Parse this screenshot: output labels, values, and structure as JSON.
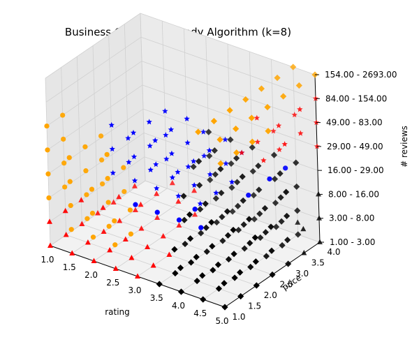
{
  "chart_data": {
    "type": "scatter",
    "projection": "3d",
    "title": "Business Gonzalez Greedy Algorithm (k=8)",
    "xlabel": "rating",
    "ylabel": "price",
    "zlabel": "# reviews",
    "x_ticks": [
      "1.0",
      "1.5",
      "2.0",
      "2.5",
      "3.0",
      "3.5",
      "4.0",
      "4.5",
      "5.0"
    ],
    "y_ticks": [
      "1.0",
      "1.5",
      "2.0",
      "2.5",
      "3.0",
      "3.5",
      "4.0"
    ],
    "z_ticks": [
      "1.00 - 3.00",
      "3.00 - 8.00",
      "8.00 - 16.00",
      "16.00 - 29.00",
      "29.00 - 49.00",
      "49.00 - 83.00",
      "84.00 - 154.00",
      "154.00 - 2693.00"
    ],
    "xlim": [
      1,
      5
    ],
    "ylim": [
      1,
      4
    ],
    "zlim": [
      0,
      7
    ],
    "grid": true,
    "legend": "none",
    "clusters": [
      {
        "id": "orange",
        "marker": "circle",
        "color": "#FFA500",
        "points": [
          [
            1.0,
            1.0,
            2
          ],
          [
            1.0,
            1.0,
            3
          ],
          [
            1.0,
            1.0,
            4
          ],
          [
            1.0,
            1.0,
            5
          ],
          [
            1.0,
            1.5,
            2
          ],
          [
            1.0,
            1.5,
            3
          ],
          [
            1.0,
            1.5,
            4
          ],
          [
            1.0,
            1.5,
            5
          ],
          [
            1.5,
            1.0,
            1
          ],
          [
            1.5,
            1.0,
            2
          ],
          [
            1.5,
            1.0,
            3
          ],
          [
            1.5,
            1.0,
            4
          ],
          [
            1.5,
            1.5,
            1
          ],
          [
            1.5,
            1.5,
            2
          ],
          [
            1.5,
            1.5,
            3
          ],
          [
            1.5,
            1.5,
            4
          ],
          [
            1.5,
            2.0,
            2
          ],
          [
            1.5,
            2.0,
            3
          ],
          [
            1.5,
            2.0,
            4
          ],
          [
            2.0,
            1.0,
            1
          ],
          [
            2.0,
            1.0,
            2
          ],
          [
            2.0,
            1.0,
            3
          ],
          [
            2.0,
            1.5,
            1
          ],
          [
            2.0,
            1.5,
            2
          ],
          [
            2.0,
            1.5,
            3
          ],
          [
            2.0,
            1.5,
            4
          ],
          [
            2.0,
            2.0,
            2
          ],
          [
            2.0,
            2.0,
            3
          ],
          [
            2.5,
            1.0,
            1
          ],
          [
            2.5,
            1.0,
            2
          ],
          [
            2.5,
            1.5,
            1
          ],
          [
            2.5,
            1.5,
            2
          ]
        ]
      },
      {
        "id": "orange-diamond",
        "marker": "diamond",
        "color": "#FFA500",
        "points": [
          [
            4.5,
            1.0,
            7
          ],
          [
            4.5,
            1.5,
            7
          ],
          [
            4.5,
            2.0,
            7
          ],
          [
            4.5,
            2.5,
            7
          ],
          [
            4.5,
            3.0,
            7
          ],
          [
            4.5,
            3.5,
            7
          ],
          [
            4.5,
            4.0,
            7
          ],
          [
            5.0,
            1.0,
            7
          ],
          [
            5.0,
            1.5,
            7
          ],
          [
            5.0,
            2.0,
            7
          ],
          [
            5.0,
            2.5,
            7
          ],
          [
            5.0,
            3.0,
            7
          ],
          [
            5.0,
            3.5,
            7
          ],
          [
            5.0,
            4.0,
            7
          ],
          [
            5.0,
            1.0,
            6
          ],
          [
            5.0,
            1.5,
            6
          ],
          [
            5.0,
            2.0,
            6
          ],
          [
            5.0,
            2.5,
            6
          ]
        ]
      },
      {
        "id": "blue",
        "marker": "star",
        "color": "#0000FF",
        "points": [
          [
            2.5,
            1.0,
            4
          ],
          [
            2.5,
            1.0,
            5
          ],
          [
            2.5,
            1.0,
            6
          ],
          [
            2.5,
            1.5,
            4
          ],
          [
            2.5,
            1.5,
            5
          ],
          [
            3.0,
            1.0,
            4
          ],
          [
            3.0,
            1.0,
            5
          ],
          [
            3.0,
            1.0,
            6
          ],
          [
            3.0,
            1.5,
            4
          ],
          [
            3.0,
            1.5,
            5
          ],
          [
            3.0,
            1.5,
            6
          ],
          [
            3.0,
            2.0,
            4
          ],
          [
            3.0,
            2.0,
            5
          ],
          [
            3.0,
            2.0,
            6
          ],
          [
            3.5,
            1.0,
            4
          ],
          [
            3.5,
            1.0,
            5
          ],
          [
            3.5,
            1.0,
            6
          ],
          [
            3.5,
            1.5,
            4
          ],
          [
            3.5,
            1.5,
            5
          ],
          [
            3.5,
            1.5,
            6
          ],
          [
            3.5,
            2.0,
            4
          ],
          [
            3.5,
            2.0,
            5
          ],
          [
            3.5,
            2.0,
            6
          ],
          [
            3.5,
            2.5,
            4
          ],
          [
            3.5,
            2.5,
            5
          ],
          [
            4.0,
            1.0,
            4
          ],
          [
            4.0,
            1.0,
            5
          ],
          [
            4.0,
            1.5,
            4
          ],
          [
            4.0,
            1.5,
            5
          ],
          [
            4.0,
            2.0,
            4
          ],
          [
            4.0,
            2.0,
            5
          ],
          [
            4.0,
            2.5,
            4
          ],
          [
            4.0,
            2.5,
            5
          ],
          [
            4.0,
            3.0,
            4
          ],
          [
            4.5,
            1.0,
            4
          ],
          [
            4.5,
            1.5,
            4
          ],
          [
            4.5,
            2.0,
            4
          ]
        ]
      },
      {
        "id": "blue-circle",
        "marker": "circle",
        "color": "#0000FF",
        "points": [
          [
            3.0,
            1.0,
            3
          ],
          [
            3.5,
            1.0,
            3
          ],
          [
            4.0,
            1.0,
            3
          ],
          [
            4.0,
            1.5,
            3
          ],
          [
            4.5,
            1.0,
            3
          ],
          [
            4.5,
            2.5,
            3
          ],
          [
            5.0,
            2.5,
            4
          ],
          [
            5.0,
            3.0,
            4
          ]
        ]
      },
      {
        "id": "red-star",
        "marker": "star",
        "color": "#FF0000",
        "points": [
          [
            4.0,
            3.0,
            4
          ],
          [
            4.0,
            3.5,
            4
          ],
          [
            4.0,
            3.5,
            5
          ],
          [
            4.0,
            4.0,
            4
          ],
          [
            4.5,
            3.0,
            4
          ],
          [
            4.5,
            3.5,
            4
          ],
          [
            4.5,
            3.5,
            5
          ],
          [
            4.5,
            4.0,
            5
          ],
          [
            5.0,
            3.0,
            5
          ],
          [
            5.0,
            3.5,
            5
          ],
          [
            5.0,
            4.0,
            5
          ],
          [
            5.0,
            3.5,
            6
          ],
          [
            5.0,
            4.0,
            6
          ],
          [
            5.0,
            4.0,
            4
          ]
        ]
      },
      {
        "id": "red",
        "marker": "triangle",
        "color": "#FF0000",
        "points": [
          [
            1.0,
            1.0,
            0
          ],
          [
            1.0,
            1.0,
            1
          ],
          [
            1.0,
            1.5,
            0
          ],
          [
            1.0,
            1.5,
            1
          ],
          [
            1.0,
            2.0,
            0
          ],
          [
            1.0,
            2.0,
            1
          ],
          [
            1.0,
            2.5,
            0
          ],
          [
            1.0,
            3.0,
            0
          ],
          [
            1.5,
            1.0,
            0
          ],
          [
            1.5,
            1.5,
            0
          ],
          [
            1.5,
            2.0,
            0
          ],
          [
            1.5,
            2.5,
            0
          ],
          [
            1.5,
            3.0,
            0
          ],
          [
            1.5,
            2.0,
            1
          ],
          [
            1.5,
            2.5,
            1
          ],
          [
            1.5,
            3.0,
            1
          ],
          [
            2.0,
            1.0,
            0
          ],
          [
            2.0,
            1.5,
            0
          ],
          [
            2.0,
            2.0,
            0
          ],
          [
            2.0,
            2.5,
            0
          ],
          [
            2.0,
            3.0,
            0
          ],
          [
            2.0,
            2.5,
            1
          ],
          [
            2.0,
            3.0,
            1
          ],
          [
            2.0,
            3.5,
            1
          ],
          [
            2.5,
            1.0,
            0
          ],
          [
            2.5,
            1.5,
            0
          ],
          [
            2.5,
            2.0,
            0
          ],
          [
            2.5,
            2.5,
            0
          ],
          [
            2.5,
            3.0,
            0
          ],
          [
            2.5,
            3.5,
            0
          ],
          [
            2.5,
            3.0,
            1
          ],
          [
            2.5,
            3.5,
            1
          ],
          [
            3.0,
            1.0,
            0
          ],
          [
            3.0,
            1.5,
            0
          ],
          [
            3.0,
            2.0,
            0
          ]
        ]
      },
      {
        "id": "black",
        "marker": "diamond",
        "color": "#000000",
        "points": [
          [
            2.5,
            4.0,
            1
          ],
          [
            2.5,
            4.0,
            2
          ],
          [
            2.5,
            4.0,
            3
          ],
          [
            2.5,
            3.5,
            2
          ],
          [
            3.0,
            2.5,
            0
          ],
          [
            3.0,
            3.0,
            0
          ],
          [
            3.0,
            3.5,
            0
          ],
          [
            3.0,
            4.0,
            0
          ],
          [
            3.0,
            2.5,
            1
          ],
          [
            3.0,
            3.0,
            1
          ],
          [
            3.0,
            3.5,
            1
          ],
          [
            3.0,
            4.0,
            1
          ],
          [
            3.0,
            2.5,
            2
          ],
          [
            3.0,
            3.0,
            2
          ],
          [
            3.0,
            3.5,
            2
          ],
          [
            3.0,
            4.0,
            2
          ],
          [
            3.0,
            3.0,
            3
          ],
          [
            3.0,
            3.5,
            3
          ],
          [
            3.0,
            4.0,
            3
          ],
          [
            3.5,
            1.0,
            0
          ],
          [
            3.5,
            1.5,
            0
          ],
          [
            3.5,
            2.0,
            0
          ],
          [
            3.5,
            2.5,
            0
          ],
          [
            3.5,
            3.0,
            0
          ],
          [
            3.5,
            3.5,
            0
          ],
          [
            3.5,
            4.0,
            0
          ],
          [
            3.5,
            1.5,
            1
          ],
          [
            3.5,
            2.0,
            1
          ],
          [
            3.5,
            2.5,
            1
          ],
          [
            3.5,
            3.0,
            1
          ],
          [
            3.5,
            3.5,
            1
          ],
          [
            3.5,
            4.0,
            1
          ],
          [
            3.5,
            2.0,
            2
          ],
          [
            3.5,
            2.5,
            2
          ],
          [
            3.5,
            3.0,
            2
          ],
          [
            3.5,
            3.5,
            2
          ],
          [
            3.5,
            4.0,
            2
          ],
          [
            3.5,
            3.0,
            3
          ],
          [
            3.5,
            3.5,
            3
          ],
          [
            3.5,
            4.0,
            3
          ],
          [
            4.0,
            1.0,
            0
          ],
          [
            4.0,
            1.5,
            0
          ],
          [
            4.0,
            2.0,
            0
          ],
          [
            4.0,
            2.5,
            0
          ],
          [
            4.0,
            3.0,
            0
          ],
          [
            4.0,
            3.5,
            0
          ],
          [
            4.0,
            4.0,
            0
          ],
          [
            4.0,
            1.0,
            1
          ],
          [
            4.0,
            1.5,
            1
          ],
          [
            4.0,
            2.0,
            1
          ],
          [
            4.0,
            2.5,
            1
          ],
          [
            4.0,
            3.0,
            1
          ],
          [
            4.0,
            3.5,
            1
          ],
          [
            4.0,
            4.0,
            1
          ],
          [
            4.0,
            2.0,
            2
          ],
          [
            4.0,
            2.5,
            2
          ],
          [
            4.0,
            3.0,
            2
          ],
          [
            4.0,
            3.5,
            2
          ],
          [
            4.0,
            4.0,
            2
          ],
          [
            4.0,
            3.0,
            3
          ],
          [
            4.0,
            3.5,
            3
          ],
          [
            4.0,
            4.0,
            3
          ],
          [
            4.5,
            1.0,
            0
          ],
          [
            4.5,
            1.5,
            0
          ],
          [
            4.5,
            2.0,
            0
          ],
          [
            4.5,
            2.5,
            0
          ],
          [
            4.5,
            3.0,
            0
          ],
          [
            4.5,
            3.5,
            0
          ],
          [
            4.5,
            4.0,
            0
          ],
          [
            4.5,
            1.0,
            1
          ],
          [
            4.5,
            1.5,
            1
          ],
          [
            4.5,
            2.0,
            1
          ],
          [
            4.5,
            2.5,
            1
          ],
          [
            4.5,
            3.0,
            1
          ],
          [
            4.5,
            3.5,
            1
          ],
          [
            4.5,
            4.0,
            1
          ],
          [
            4.5,
            2.0,
            2
          ],
          [
            4.5,
            2.5,
            2
          ],
          [
            4.5,
            3.0,
            2
          ],
          [
            4.5,
            3.5,
            2
          ],
          [
            4.5,
            4.0,
            2
          ],
          [
            4.5,
            3.5,
            3
          ],
          [
            4.5,
            4.0,
            3
          ],
          [
            5.0,
            1.0,
            0
          ],
          [
            5.0,
            1.5,
            0
          ],
          [
            5.0,
            2.0,
            0
          ],
          [
            5.0,
            2.5,
            0
          ],
          [
            5.0,
            3.0,
            0
          ],
          [
            5.0,
            1.0,
            1
          ],
          [
            5.0,
            1.5,
            1
          ],
          [
            5.0,
            2.0,
            1
          ],
          [
            5.0,
            2.5,
            1
          ],
          [
            5.0,
            3.0,
            1
          ],
          [
            5.0,
            2.0,
            2
          ],
          [
            5.0,
            2.5,
            2
          ],
          [
            5.0,
            3.0,
            2
          ],
          [
            5.0,
            3.0,
            3
          ]
        ]
      },
      {
        "id": "black-triangle",
        "marker": "triangle",
        "color": "#000000",
        "points": [
          [
            5.0,
            3.5,
            1
          ],
          [
            5.0,
            4.0,
            1
          ],
          [
            5.0,
            3.5,
            0
          ],
          [
            5.0,
            4.0,
            0
          ],
          [
            5.0,
            4.0,
            2
          ],
          [
            4.5,
            4.0,
            0.5
          ]
        ]
      }
    ]
  }
}
